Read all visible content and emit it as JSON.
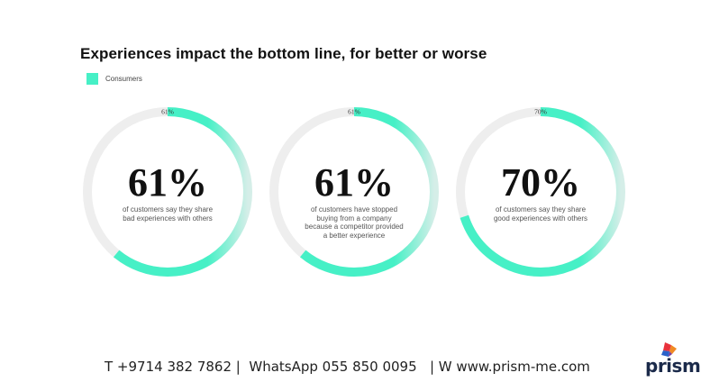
{
  "header": {
    "title": "Experiences impact the bottom line, for better or worse"
  },
  "legend": {
    "label": "Consumers",
    "color": "#46f0c6"
  },
  "chart_data": {
    "type": "donut",
    "title": "Experiences impact the bottom line, for better or worse",
    "series_name": "Consumers",
    "items": [
      {
        "value": 61,
        "label": "61%",
        "big": "61%",
        "description": "of customers say they share bad experiences with others"
      },
      {
        "value": 61,
        "label": "61%",
        "big": "61%",
        "description": "of customers have stopped buying from a company because a competitor provided a better experience"
      },
      {
        "value": 70,
        "label": "70%",
        "big": "70%",
        "description": "of customers say they share good experiences with others"
      }
    ]
  },
  "colors": {
    "accent": "#46f0c6",
    "track": "#eeeeee"
  },
  "footer": {
    "contact": "T +9714 382 7862 |  WhatsApp 055 850 0095   | W www.prism-me.com"
  },
  "logo": {
    "text": "prism"
  }
}
